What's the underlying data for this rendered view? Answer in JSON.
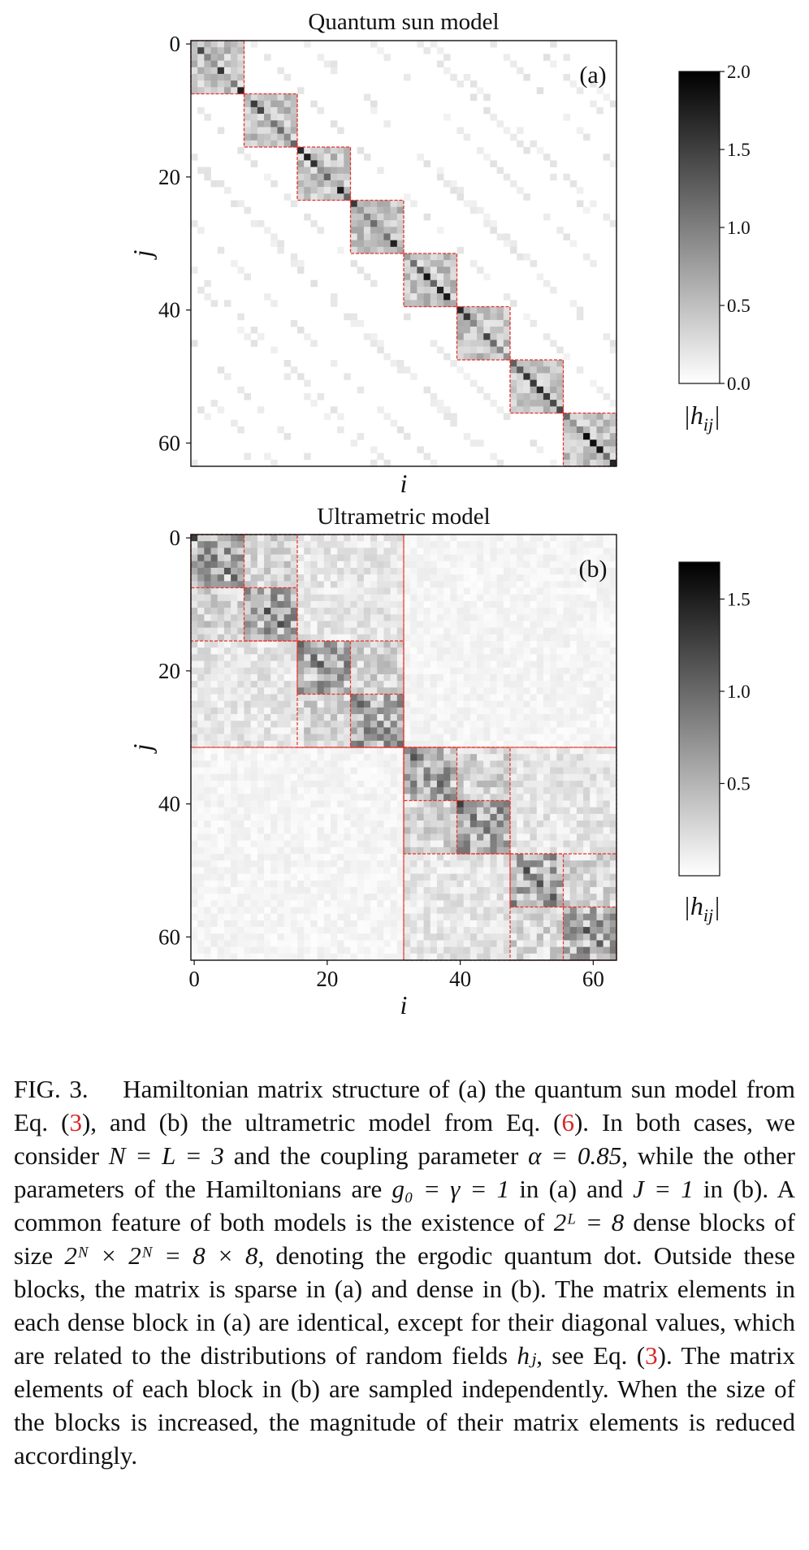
{
  "figure": {
    "panel_a": {
      "title": "Quantum sun model",
      "label": "(a)",
      "xlabel": "i",
      "ylabel": "j",
      "colorbar_label": "|h_ij|",
      "colorbar_ticks": [
        "0.0",
        "0.5",
        "1.0",
        "1.5",
        "2.0"
      ]
    },
    "panel_b": {
      "title": "Ultrametric model",
      "label": "(b)",
      "xlabel": "i",
      "ylabel": "j",
      "colorbar_label": "|h_ij|",
      "colorbar_ticks": [
        "0.5",
        "1.0",
        "1.5"
      ]
    }
  },
  "chart_data": [
    {
      "type": "heatmap",
      "title": "Quantum sun model",
      "xlabel": "i",
      "ylabel": "j",
      "matrix_size": 64,
      "block_size": 8,
      "num_blocks": 8,
      "structure": "block-diagonal dense 8x8 blocks with sparse off-block elements",
      "y_ticks": [
        0,
        20,
        40,
        60
      ],
      "colorbar": {
        "label": "|h_ij|",
        "range": [
          0.0,
          2.0
        ],
        "ticks": [
          0.0,
          0.5,
          1.0,
          1.5,
          2.0
        ]
      }
    },
    {
      "type": "heatmap",
      "title": "Ultrametric model",
      "xlabel": "i",
      "ylabel": "j",
      "matrix_size": 64,
      "block_size": 8,
      "hierarchy_levels": [
        8,
        16,
        32
      ],
      "structure": "hierarchical dense blocks, dense but weak off-block elements",
      "x_ticks": [
        0,
        20,
        40,
        60
      ],
      "y_ticks": [
        0,
        20,
        40,
        60
      ],
      "colorbar": {
        "label": "|h_ij|",
        "range": [
          0.0,
          1.7
        ],
        "ticks": [
          0.5,
          1.0,
          1.5
        ]
      }
    }
  ],
  "caption": {
    "fig_label": "FIG. 3.",
    "t1": "Hamiltonian matrix structure of (a) the quantum sun model from Eq. (",
    "ref1": "3",
    "t2": "), and (b) the ultrametric model from Eq. (",
    "ref2": "6",
    "t3": ").  In both cases, we consider ",
    "m1": "N = L = 3",
    "t4": " and the coupling parameter ",
    "m2": "α = 0.85",
    "t5": ", while the other parameters of the Hamiltonians are ",
    "m3": "g₀ = γ = 1",
    "t6": " in (a) and ",
    "m4": "J = 1",
    "t7": " in (b).  A common feature of both models is the existence of ",
    "m5": "2ᴸ = 8",
    "t8": " dense blocks of size ",
    "m6": "2ᴺ × 2ᴺ = 8 × 8",
    "t9": ", denoting the ergodic quantum dot.  Outside these blocks, the matrix is sparse in (a) and dense in (b).  The matrix elements in each dense block in (a) are identical, except for their diagonal values, which are related to the distributions of random fields ",
    "m7": "hⱼ",
    "t10": ", see Eq. (",
    "ref3": "3",
    "t11": "). The matrix elements of each block in (b) are sampled independently.  When the size of the blocks is increased, the magnitude of their matrix elements is reduced accordingly."
  }
}
